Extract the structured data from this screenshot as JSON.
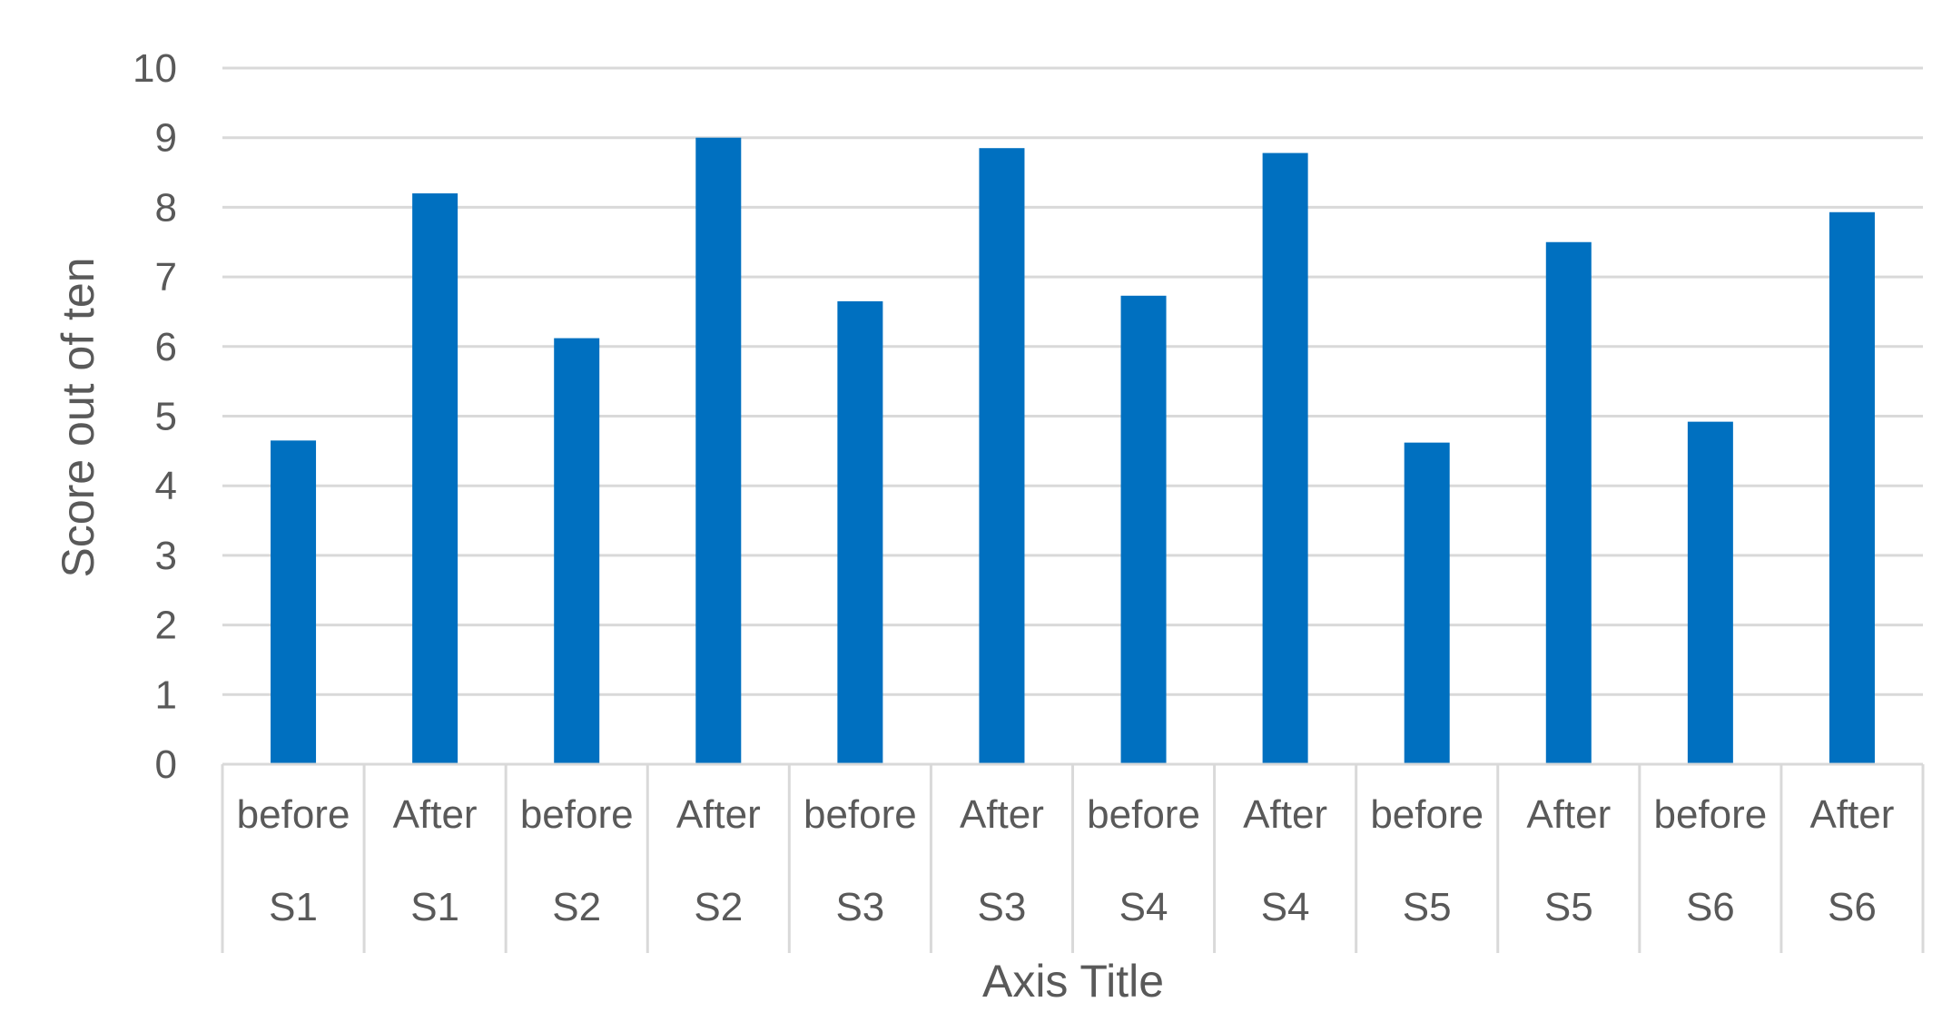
{
  "chart_data": {
    "type": "bar",
    "title": "",
    "ylabel": "Score out of ten",
    "xlabel": "Axis Title",
    "ylim": [
      0,
      10
    ],
    "yticks": [
      0,
      1,
      2,
      3,
      4,
      5,
      6,
      7,
      8,
      9,
      10
    ],
    "grid": true,
    "legend": "none",
    "bar_color": "#0070C0",
    "categories": [
      {
        "inner": "before",
        "outer": "S1"
      },
      {
        "inner": "After",
        "outer": "S1"
      },
      {
        "inner": "before",
        "outer": "S2"
      },
      {
        "inner": "After",
        "outer": "S2"
      },
      {
        "inner": "before",
        "outer": "S3"
      },
      {
        "inner": "After",
        "outer": "S3"
      },
      {
        "inner": "before",
        "outer": "S4"
      },
      {
        "inner": "After",
        "outer": "S4"
      },
      {
        "inner": "before",
        "outer": "S5"
      },
      {
        "inner": "After",
        "outer": "S5"
      },
      {
        "inner": "before",
        "outer": "S6"
      },
      {
        "inner": "After",
        "outer": "S6"
      }
    ],
    "values": [
      4.65,
      8.2,
      6.12,
      9.0,
      6.65,
      8.85,
      6.73,
      8.78,
      4.62,
      7.5,
      4.92,
      7.93
    ]
  }
}
